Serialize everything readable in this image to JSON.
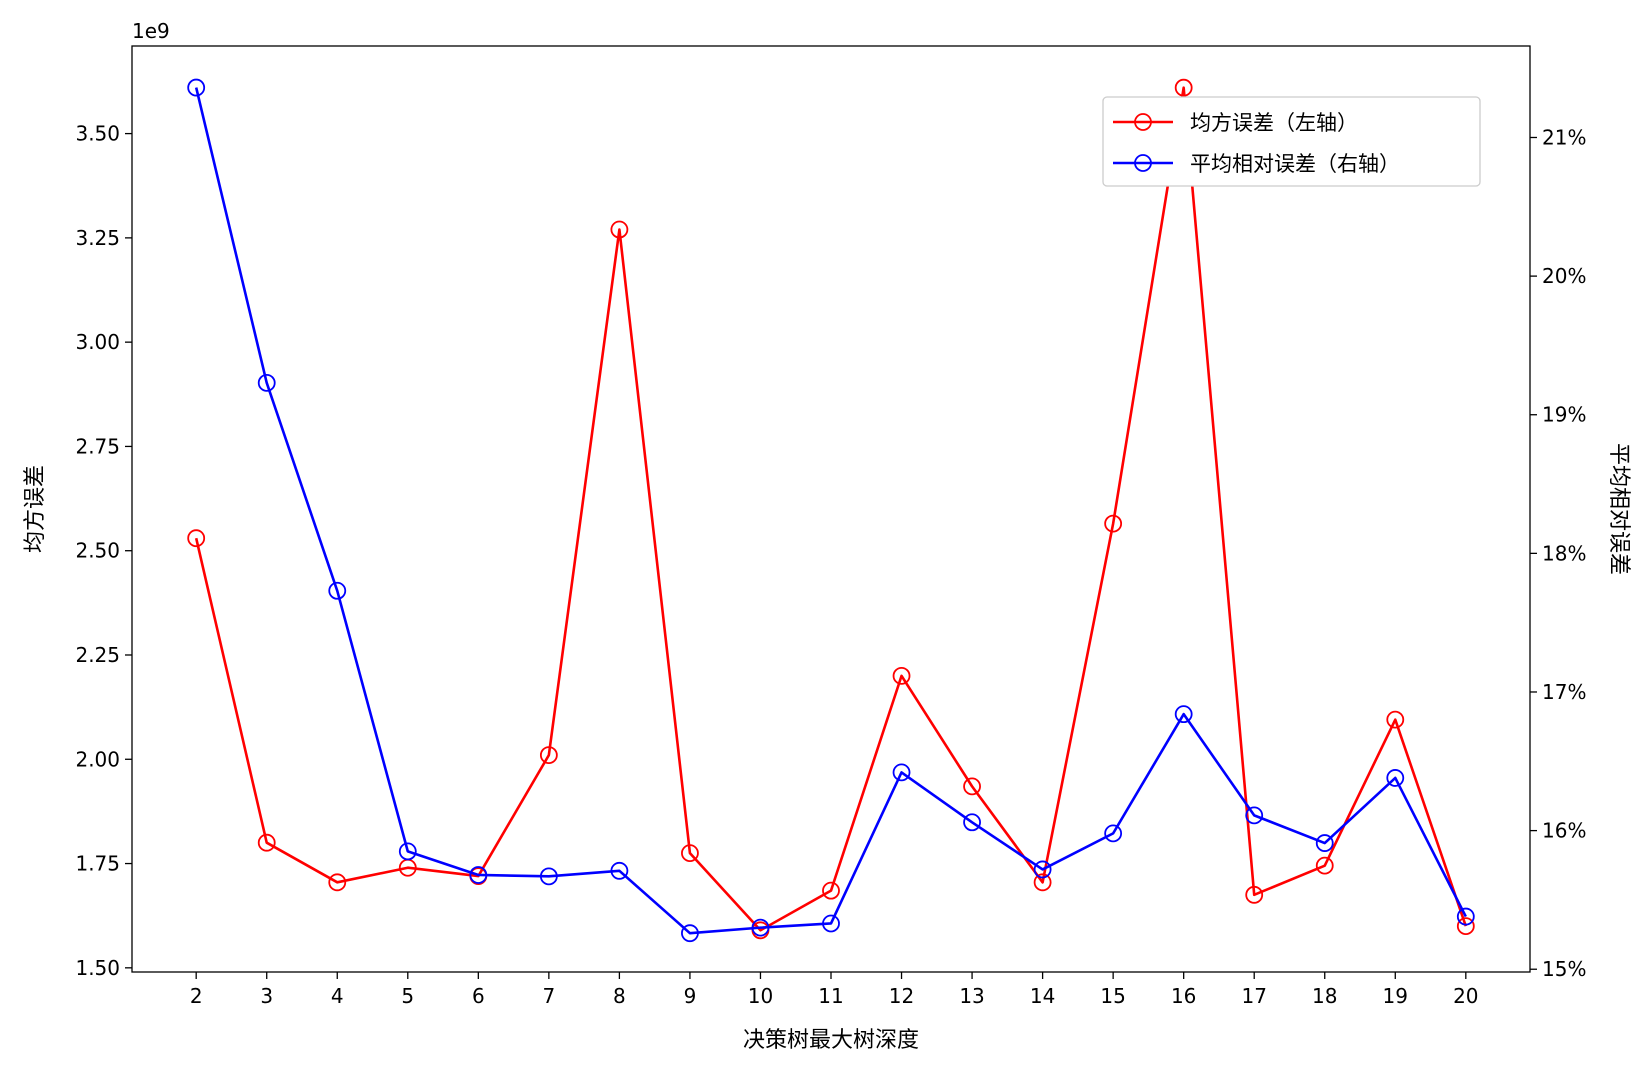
{
  "chart_data": {
    "type": "line",
    "xlabel": "决策树最大树深度",
    "ylabel_left": "均方误差",
    "ylabel_right": "平均相对误差",
    "left_axis_multiplier": "1e9",
    "x": [
      2,
      3,
      4,
      5,
      6,
      7,
      8,
      9,
      10,
      11,
      12,
      13,
      14,
      15,
      16,
      17,
      18,
      19,
      20
    ],
    "y_left_range": [
      1.49,
      3.71
    ],
    "y_left_ticks": [
      "1.50",
      "1.75",
      "2.00",
      "2.25",
      "2.50",
      "2.75",
      "3.00",
      "3.25",
      "3.50"
    ],
    "y_right_range": [
      14.98,
      21.66
    ],
    "y_right_ticks": [
      "15%",
      "16%",
      "17%",
      "18%",
      "19%",
      "20%",
      "21%"
    ],
    "grid": false,
    "legend_position": "top-right",
    "series": [
      {
        "name": "均方误差（左轴）",
        "axis": "left",
        "color": "#ff0000",
        "values": [
          2.53,
          1.8,
          1.705,
          1.74,
          1.72,
          2.01,
          3.27,
          1.775,
          1.59,
          1.685,
          2.2,
          1.935,
          1.705,
          2.565,
          3.61,
          1.675,
          1.745,
          2.095,
          1.6
        ]
      },
      {
        "name": "平均相对误差（右轴）",
        "axis": "right",
        "color": "#0000ff",
        "values": [
          21.36,
          19.23,
          17.73,
          15.85,
          15.68,
          15.67,
          15.71,
          15.26,
          15.3,
          15.33,
          16.42,
          16.06,
          15.72,
          15.98,
          16.84,
          16.11,
          15.91,
          16.38,
          15.38
        ]
      }
    ]
  }
}
